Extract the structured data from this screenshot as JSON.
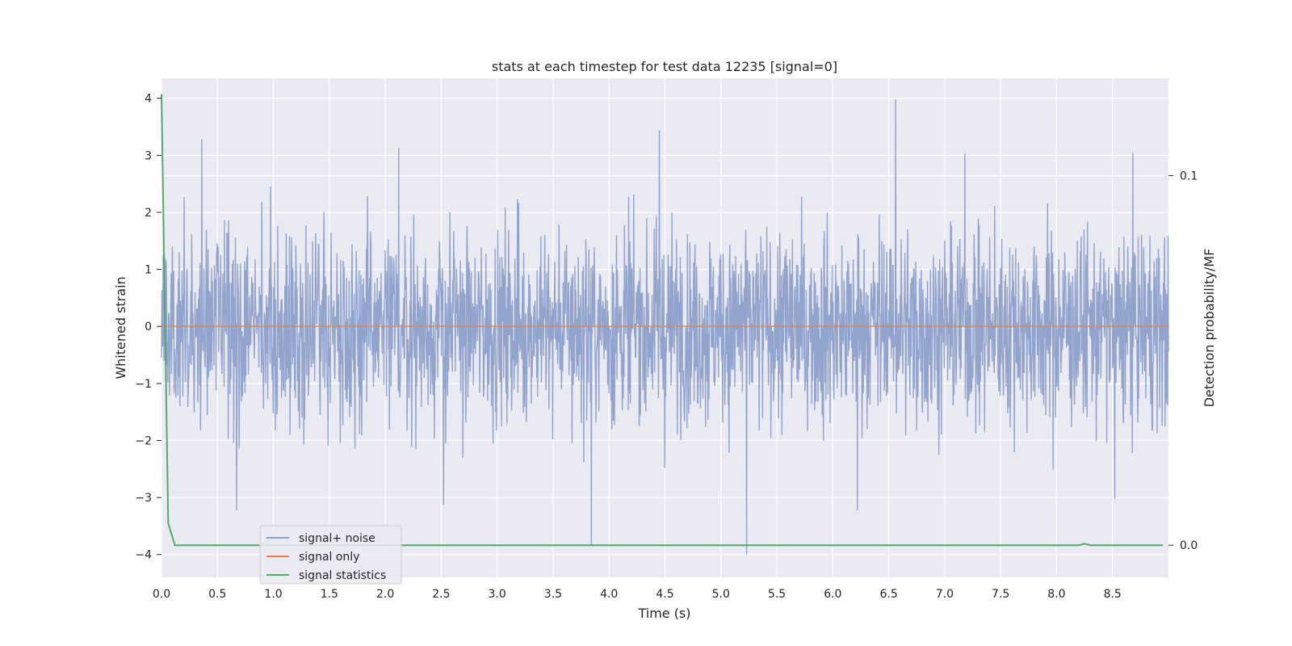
{
  "chart_data": {
    "type": "line",
    "title": "stats at each timestep for test data 12235 [signal=0]",
    "xlabel": "Time (s)",
    "ylabel": "Whitened strain",
    "y2label": "Detection probability/MF",
    "xlim": [
      0.0,
      9.0
    ],
    "ylim": [
      -4.4,
      4.35
    ],
    "y2lim": [
      -0.0087,
      0.1263
    ],
    "x_ticks": [
      0.0,
      0.5,
      1.0,
      1.5,
      2.0,
      2.5,
      3.0,
      3.5,
      4.0,
      4.5,
      5.0,
      5.5,
      6.0,
      6.5,
      7.0,
      7.5,
      8.0,
      8.5
    ],
    "x_tick_labels": [
      "0.0",
      "0.5",
      "1.0",
      "1.5",
      "2.0",
      "2.5",
      "3.0",
      "3.5",
      "4.0",
      "4.5",
      "5.0",
      "5.5",
      "6.0",
      "6.5",
      "7.0",
      "7.5",
      "8.0",
      "8.5"
    ],
    "y_ticks": [
      -4,
      -3,
      -2,
      -1,
      0,
      1,
      2,
      3,
      4
    ],
    "y_tick_labels": [
      "−4",
      "−3",
      "−2",
      "−1",
      "0",
      "1",
      "2",
      "3",
      "4"
    ],
    "y2_ticks": [
      0.0,
      0.1
    ],
    "y2_tick_labels": [
      "0.0",
      "0.1"
    ],
    "grid": true,
    "legend_position": "lower-left",
    "series": [
      {
        "name": "signal+ noise",
        "axis": "left",
        "color": "#8da0cb",
        "description": "whitened noise-dominated strain, roughly zero-mean with amplitude about ±2.5 and occasional spikes",
        "spikes": [
          {
            "x": 0.36,
            "y": 3.28
          },
          {
            "x": 2.12,
            "y": 3.13
          },
          {
            "x": 4.45,
            "y": 3.44
          },
          {
            "x": 6.56,
            "y": 3.98
          },
          {
            "x": 7.18,
            "y": 3.03
          },
          {
            "x": 8.68,
            "y": 3.05
          },
          {
            "x": 0.67,
            "y": -3.22
          },
          {
            "x": 2.52,
            "y": -3.13
          },
          {
            "x": 3.84,
            "y": -3.83
          },
          {
            "x": 5.23,
            "y": -4.0
          },
          {
            "x": 6.22,
            "y": -3.23
          },
          {
            "x": 8.52,
            "y": -3.02
          }
        ]
      },
      {
        "name": "signal only",
        "axis": "left",
        "color": "#dd8452",
        "x": [
          0.0,
          9.0
        ],
        "y": [
          0.0,
          0.0
        ]
      },
      {
        "name": "signal statistics",
        "axis": "right",
        "color": "#55a868",
        "x": [
          0.0,
          0.06,
          0.12,
          0.5,
          1.0,
          2.0,
          3.0,
          4.0,
          5.0,
          6.0,
          7.0,
          8.0,
          8.2,
          8.25,
          8.3,
          8.5,
          8.95
        ],
        "y": [
          0.122,
          0.006,
          0.0,
          0.0,
          0.0,
          0.0,
          0.0,
          0.0,
          0.0,
          0.0,
          0.0,
          0.0,
          0.0,
          0.0004,
          0.0,
          0.0,
          0.0
        ]
      }
    ]
  },
  "colors": {
    "axes_background": "#eaeaf2",
    "grid": "#ffffff"
  }
}
